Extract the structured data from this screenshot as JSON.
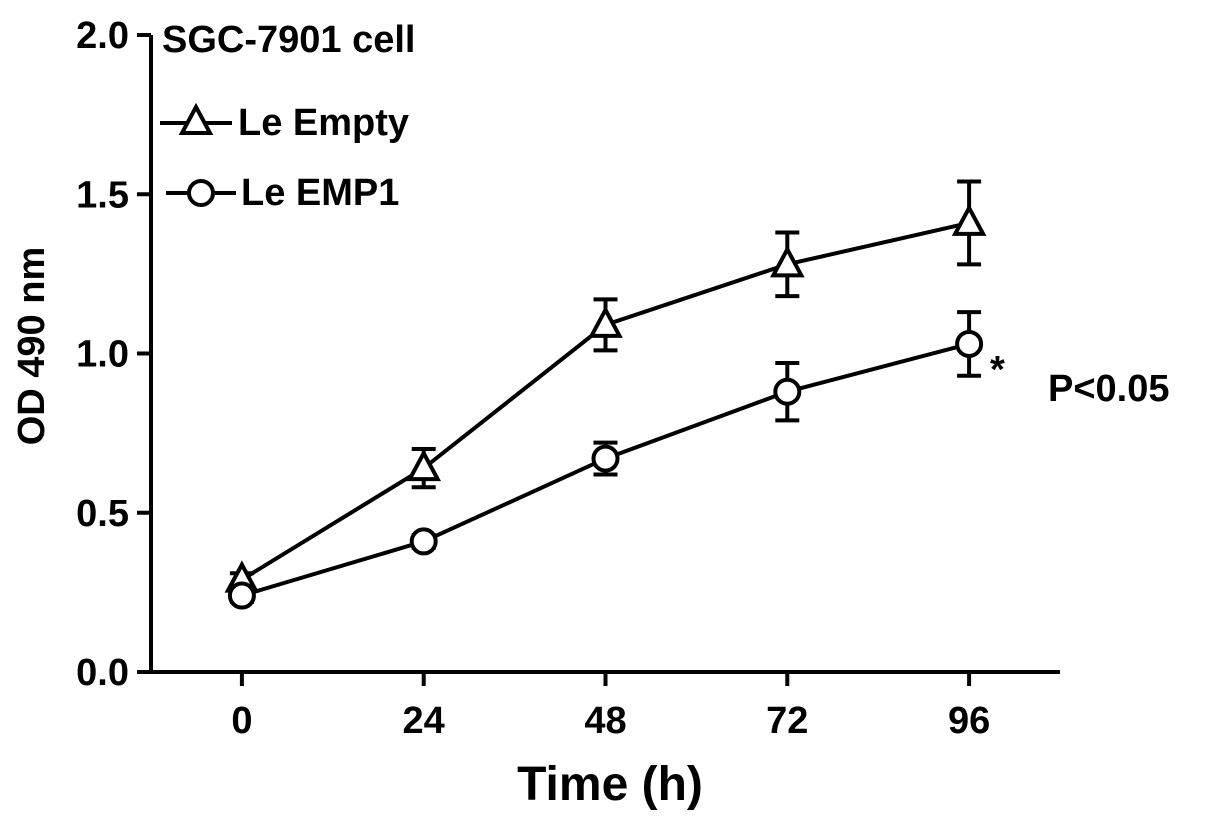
{
  "chart_data": {
    "type": "line",
    "title": "SGC-7901 cell",
    "xlabel": "Time (h)",
    "ylabel": "OD 490 nm",
    "x": [
      0,
      24,
      48,
      72,
      96
    ],
    "x_tick_labels": [
      "0",
      "24",
      "48",
      "72",
      "96"
    ],
    "y_tick_labels": [
      "0.0",
      "0.5",
      "1.0",
      "1.5",
      "2.0"
    ],
    "xlim": [
      -12,
      108
    ],
    "ylim": [
      0,
      2.0
    ],
    "y_ticks": [
      0,
      0.5,
      1.0,
      1.5,
      2.0
    ],
    "grid": false,
    "legend_placement": "top-left",
    "series": [
      {
        "name": "Le Empty",
        "marker": "triangle",
        "values": [
          0.29,
          0.64,
          1.09,
          1.28,
          1.41
        ],
        "errors": [
          0.02,
          0.06,
          0.08,
          0.1,
          0.13
        ]
      },
      {
        "name": "Le EMP1",
        "marker": "circle",
        "values": [
          0.24,
          0.41,
          0.67,
          0.88,
          1.03
        ],
        "errors": [
          0.02,
          0.02,
          0.05,
          0.09,
          0.1
        ]
      }
    ],
    "annotations": {
      "significance_mark": "*",
      "p_value": "P<0.05"
    }
  }
}
